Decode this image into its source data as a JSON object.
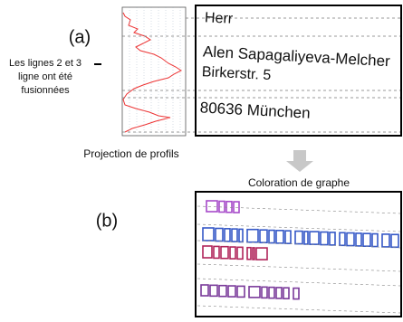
{
  "figure": {
    "panel_a_label": "(a)",
    "panel_b_label": "(b)",
    "side_note": [
      "Les lignes 2 et 3",
      "ligne ont été",
      "fusionnées"
    ],
    "profile_caption": "Projection de profils",
    "address_lines": [
      "Herr",
      "Alen Sapagaliyeva-Melcher",
      "Birkerstr. 5",
      "80636 München"
    ],
    "coloring_caption": "Coloration de graphe"
  }
}
